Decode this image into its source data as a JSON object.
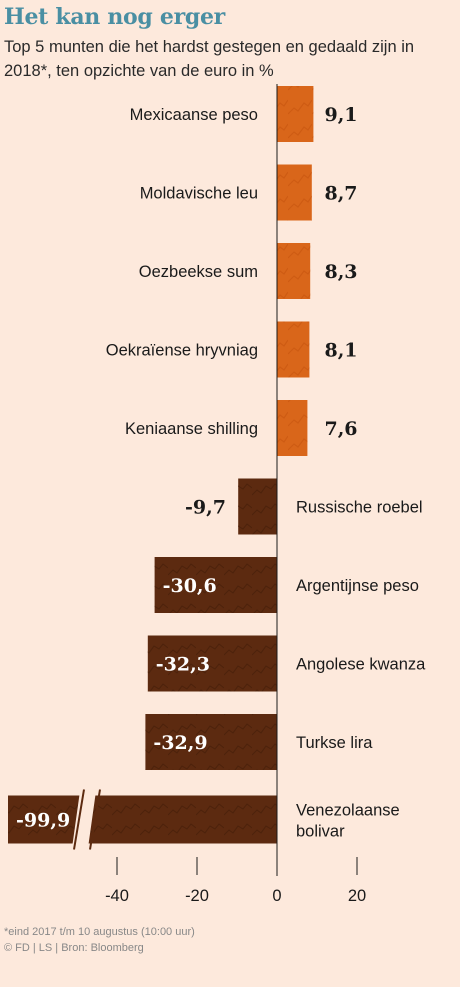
{
  "title": "Het kan nog erger",
  "subtitle": "Top 5 munten die het hardst gestegen en gedaald zijn in 2018*, ten opzichte van de euro in %",
  "footnote_line1": "*eind 2017 t/m 10 augustus (10:00 uur)",
  "footnote_line2": "© FD | LS | Bron: Bloomberg",
  "colors": {
    "positive": "#d9661a",
    "negative": "#5c2a10",
    "background": "#fde9dc"
  },
  "chart_data": {
    "type": "bar",
    "orientation": "horizontal",
    "categories": [
      "Mexicaanse peso",
      "Moldavische leu",
      "Oezbeekse sum",
      "Oekraïense hryvniag",
      "Keniaanse shilling",
      "Russische roebel",
      "Argentijnse peso",
      "Angolese kwanza",
      "Turkse lira",
      "Venezolaanse bolivar"
    ],
    "values": [
      9.1,
      8.7,
      8.3,
      8.1,
      7.6,
      -9.7,
      -30.6,
      -32.3,
      -32.9,
      -99.9
    ],
    "value_labels": [
      "9,1",
      "8,7",
      "8,3",
      "8,1",
      "7,6",
      "-9,7",
      "-30,6",
      "-32,3",
      "-32,9",
      "-99,9"
    ],
    "x_ticks": [
      -40,
      -20,
      0,
      20
    ],
    "x_tick_labels": [
      "-40",
      "-20",
      "0",
      "20"
    ],
    "xlim": [
      -60,
      20
    ],
    "axis_break_value": -99.9,
    "grid": false
  }
}
